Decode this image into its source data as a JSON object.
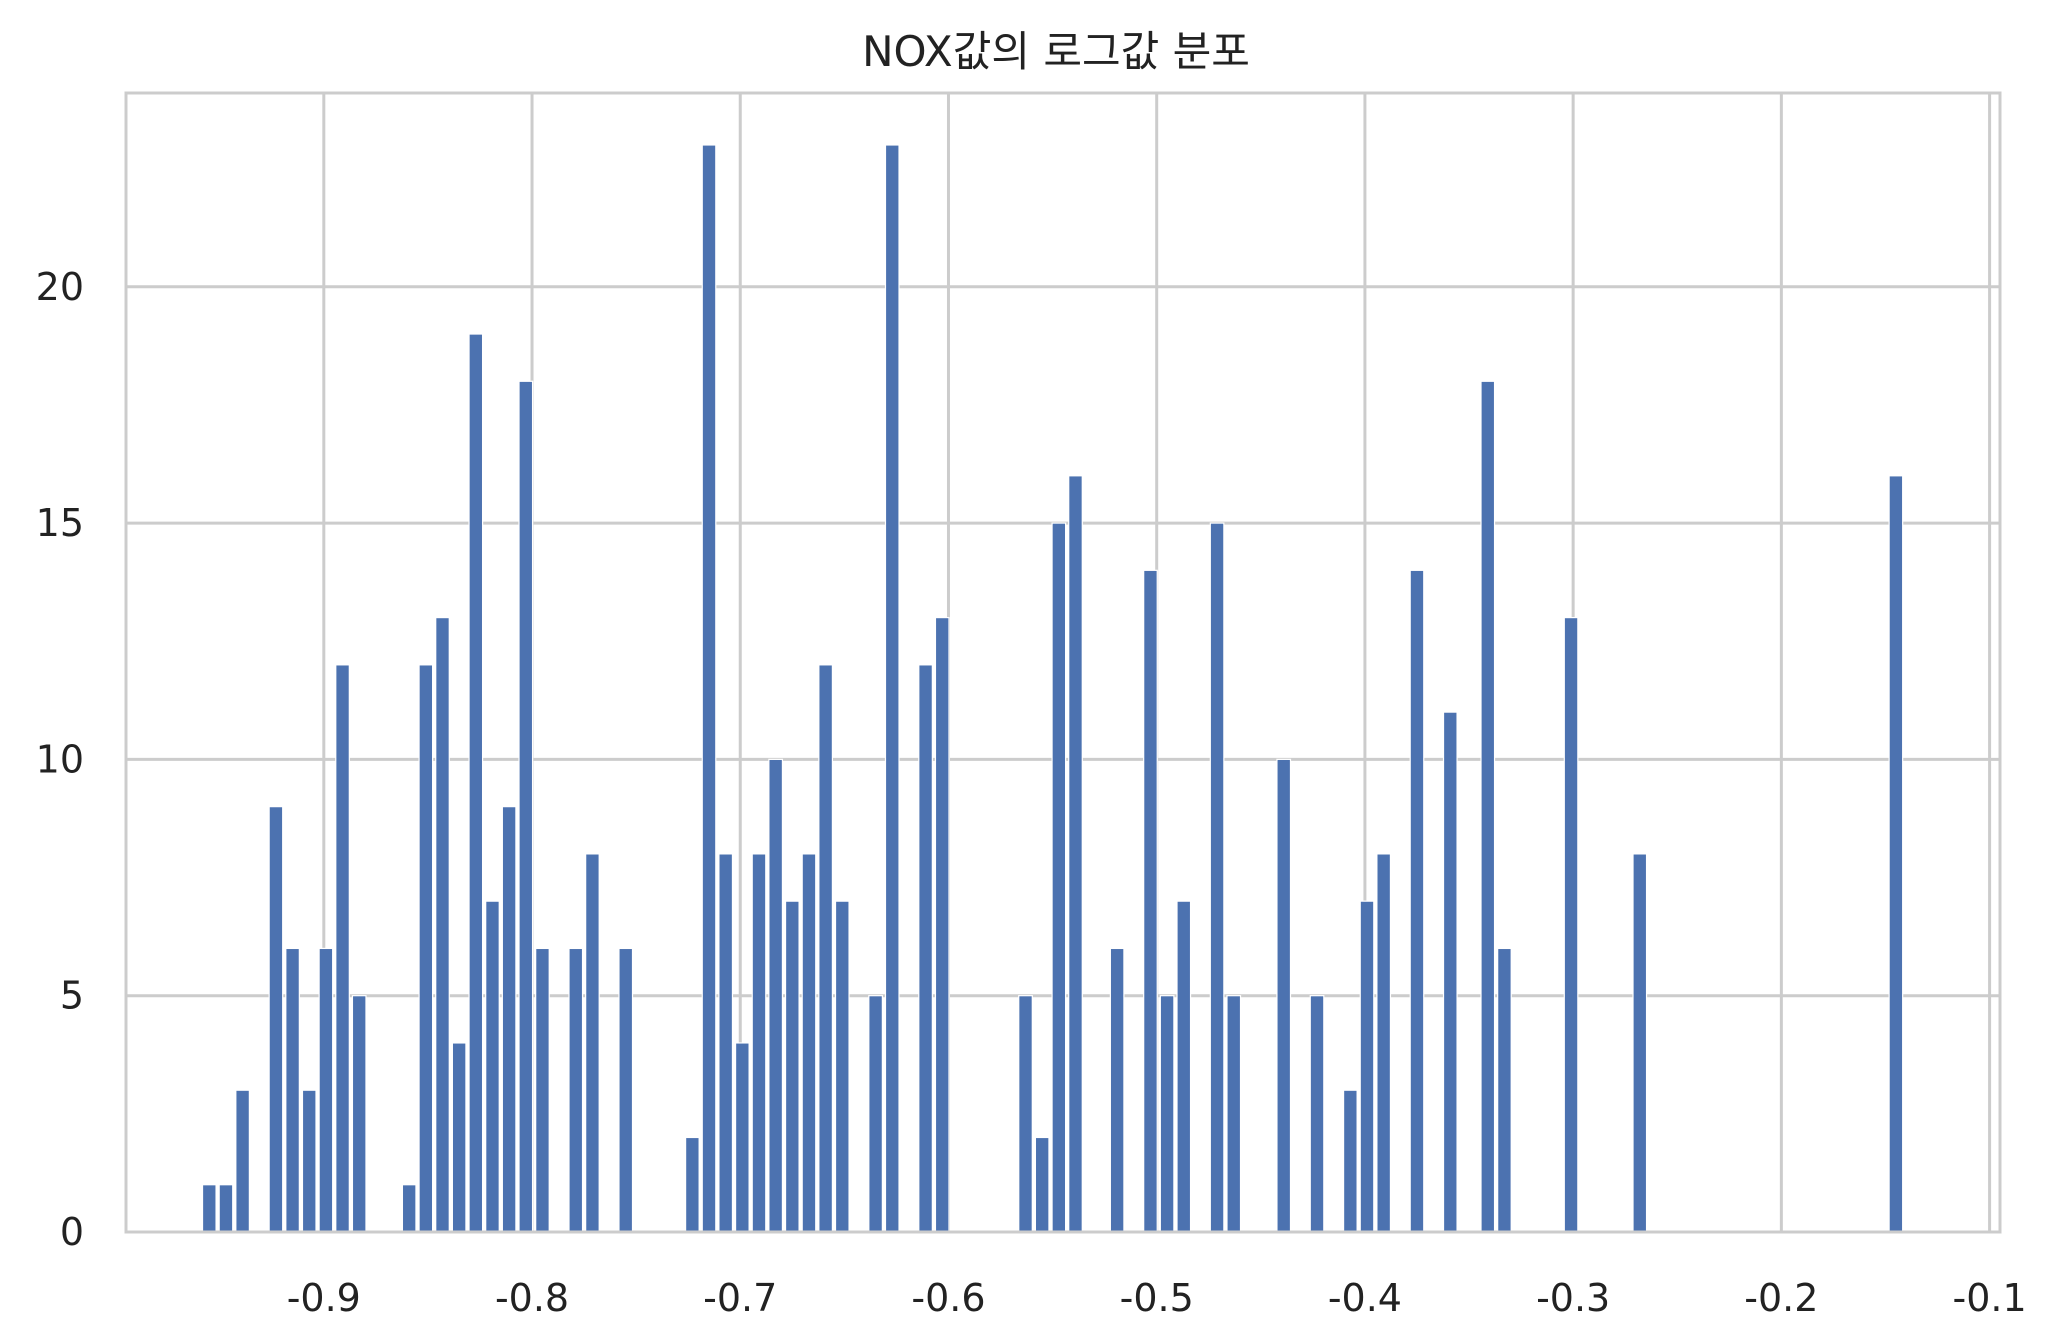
{
  "chart_data": {
    "type": "bar",
    "title": "NOX값의 로그값 분포",
    "xlabel": "",
    "ylabel": "",
    "xlim": [
      -0.995,
      -0.095
    ],
    "ylim": [
      0,
      24.1
    ],
    "xticks": [
      -0.9,
      -0.8,
      -0.7,
      -0.6,
      -0.5,
      -0.4,
      -0.3,
      -0.2,
      -0.1
    ],
    "xtick_labels": [
      "-0.9",
      "-0.8",
      "-0.7",
      "-0.6",
      "-0.5",
      "-0.4",
      "-0.3",
      "-0.2",
      "-0.1"
    ],
    "yticks": [
      0,
      5,
      10,
      15,
      20
    ],
    "ytick_labels": [
      "0",
      "5",
      "10",
      "15",
      "20"
    ],
    "grid": true,
    "bar_width": 0.0065,
    "series": [
      {
        "color": "#4c72b0",
        "x": [
          -0.955,
          -0.947,
          -0.939,
          -0.923,
          -0.915,
          -0.907,
          -0.899,
          -0.891,
          -0.883,
          -0.859,
          -0.851,
          -0.843,
          -0.835,
          -0.827,
          -0.819,
          -0.811,
          -0.803,
          -0.795,
          -0.779,
          -0.771,
          -0.755,
          -0.723,
          -0.715,
          -0.707,
          -0.699,
          -0.691,
          -0.683,
          -0.675,
          -0.667,
          -0.659,
          -0.651,
          -0.635,
          -0.627,
          -0.611,
          -0.603,
          -0.563,
          -0.555,
          -0.547,
          -0.539,
          -0.519,
          -0.503,
          -0.495,
          -0.487,
          -0.471,
          -0.463,
          -0.439,
          -0.423,
          -0.407,
          -0.399,
          -0.391,
          -0.375,
          -0.359,
          -0.341,
          -0.333,
          -0.301,
          -0.268,
          -0.145
        ],
        "values": [
          1,
          1,
          3,
          9,
          6,
          3,
          6,
          12,
          5,
          1,
          12,
          13,
          4,
          19,
          7,
          9,
          18,
          6,
          6,
          8,
          6,
          2,
          23,
          8,
          4,
          8,
          10,
          7,
          8,
          12,
          7,
          5,
          23,
          12,
          13,
          5,
          2,
          15,
          16,
          6,
          14,
          5,
          7,
          15,
          5,
          10,
          5,
          3,
          7,
          8,
          14,
          11,
          18,
          6,
          13,
          8,
          16
        ]
      }
    ]
  }
}
